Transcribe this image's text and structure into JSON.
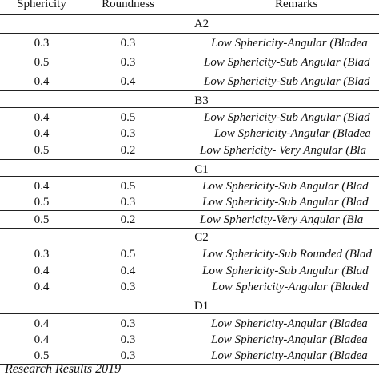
{
  "table": {
    "headers": {
      "sphericity": "Sphericity",
      "roundness": "Roundness",
      "remarks": "Remarks"
    },
    "groups": [
      {
        "label": "A2",
        "rows": [
          {
            "sphericity": "0.3",
            "roundness": "0.3",
            "remarks": "Low Sphericity-Angular (Bladea"
          },
          {
            "sphericity": "0.5",
            "roundness": "0.3",
            "remarks": "Low Sphericity-Sub Angular (Blad"
          },
          {
            "sphericity": "0.4",
            "roundness": "0.4",
            "remarks": "Low Sphericity-Sub Angular (Blad"
          }
        ]
      },
      {
        "label": "B3",
        "rows": [
          {
            "sphericity": "0.4",
            "roundness": "0.5",
            "remarks": "Low Sphericity-Sub Angular (Blad"
          },
          {
            "sphericity": "0.4",
            "roundness": "0.3",
            "remarks": "Low Sphericity-Angular (Bladea"
          },
          {
            "sphericity": "0.5",
            "roundness": "0.2",
            "remarks": "Low Sphericity- Very Angular (Bla"
          }
        ]
      },
      {
        "label": "C1",
        "rows": [
          {
            "sphericity": "0.4",
            "roundness": "0.5",
            "remarks": "Low Sphericity-Sub Angular (Blad"
          },
          {
            "sphericity": "0.5",
            "roundness": "0.3",
            "remarks": "Low Sphericity-Sub Angular (Blad"
          },
          {
            "sphericity": "0.5",
            "roundness": "0.2",
            "remarks": "Low Sphericity-Very Angular (Bla"
          }
        ]
      },
      {
        "label": "C2",
        "rows": [
          {
            "sphericity": "0.3",
            "roundness": "0.5",
            "remarks": "Low Sphericity-Sub Rounded (Blad"
          },
          {
            "sphericity": "0.4",
            "roundness": "0.4",
            "remarks": "Low Sphericity-Sub Angular (Blad"
          },
          {
            "sphericity": "0.4",
            "roundness": "0.3",
            "remarks": "Low Sphericity-Angular (Bladed"
          }
        ]
      },
      {
        "label": "D1",
        "rows": [
          {
            "sphericity": "0.4",
            "roundness": "0.3",
            "remarks": "Low Sphericity-Angular (Bladea"
          },
          {
            "sphericity": "0.4",
            "roundness": "0.3",
            "remarks": "Low Sphericity-Angular (Bladea"
          },
          {
            "sphericity": "0.5",
            "roundness": "0.3",
            "remarks": "Low Sphericity-Angular (Bladea"
          }
        ]
      }
    ]
  },
  "footer": "Research Results 2019"
}
